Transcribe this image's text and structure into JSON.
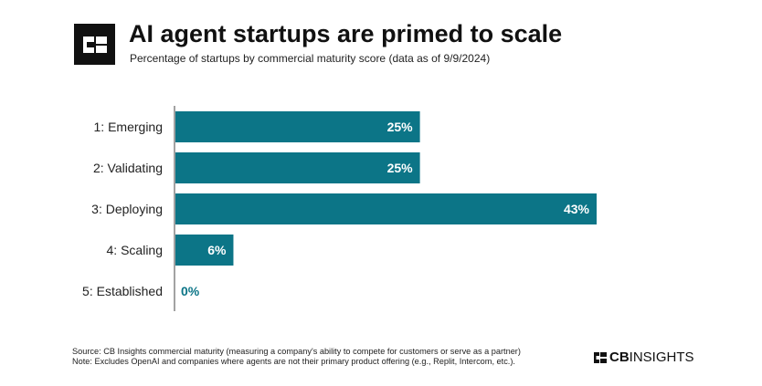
{
  "header": {
    "title": "AI agent startups are primed to scale",
    "subtitle": "Percentage of startups by commercial maturity score (data as of 9/9/2024)"
  },
  "footer": {
    "source": "Source: CB Insights commercial maturity (measuring a company's ability to compete for customers or serve as a partner)",
    "note": "Note: Excludes OpenAI and companies where agents are not their primary product offering (e.g., Replit, Intercom, etc.).",
    "brand_bold": "CB",
    "brand_light": "INSIGHTS"
  },
  "colors": {
    "bar": "#0c7587",
    "bar_label_inside": "#ffffff",
    "zero_label": "#0c7587",
    "axis": "#444444"
  },
  "icons": {
    "logo": "cb-insights-logo-icon"
  },
  "chart_data": {
    "type": "bar",
    "orientation": "horizontal",
    "categories": [
      "1: Emerging",
      "2: Validating",
      "3: Deploying",
      "4: Scaling",
      "5: Established"
    ],
    "values": [
      25,
      25,
      43,
      6,
      0
    ],
    "value_labels": [
      "25%",
      "25%",
      "43%",
      "6%",
      "0%"
    ],
    "unit": "%",
    "xlim": [
      0,
      43
    ],
    "grid": false,
    "legend": "none"
  }
}
